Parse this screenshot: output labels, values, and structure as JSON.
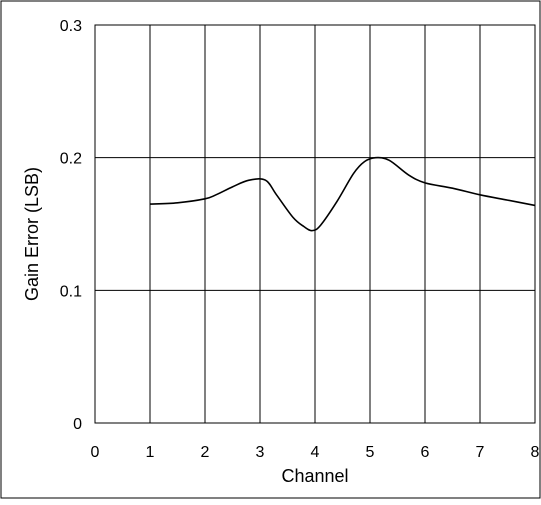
{
  "chart_data": {
    "type": "line",
    "title": "",
    "xlabel": "Channel",
    "ylabel": "Gain Error (LSB)",
    "xlim": [
      0,
      8
    ],
    "ylim": [
      0,
      0.3
    ],
    "x_ticks": [
      0,
      1,
      2,
      3,
      4,
      5,
      6,
      7,
      8
    ],
    "x_tick_labels": [
      "0",
      "1",
      "2",
      "3",
      "4",
      "5",
      "6",
      "7",
      "8"
    ],
    "y_ticks": [
      0,
      0.1,
      0.2,
      0.3
    ],
    "y_tick_labels": [
      "0",
      "0.1",
      "0.2",
      "0.3"
    ],
    "grid": true,
    "legend": "none",
    "series": [
      {
        "color": "#000000",
        "x": [
          1,
          1.5,
          2,
          2.2,
          2.5,
          2.8,
          3.1,
          3.3,
          3.6,
          3.8,
          3.95,
          4.1,
          4.4,
          4.7,
          4.9,
          5.1,
          5.35,
          5.7,
          6.0,
          6.5,
          7.0,
          7.5,
          8.0
        ],
        "y": [
          0.165,
          0.166,
          0.169,
          0.172,
          0.178,
          0.183,
          0.183,
          0.172,
          0.155,
          0.148,
          0.145,
          0.149,
          0.167,
          0.188,
          0.197,
          0.2,
          0.198,
          0.187,
          0.181,
          0.177,
          0.172,
          0.168,
          0.164
        ]
      }
    ]
  }
}
